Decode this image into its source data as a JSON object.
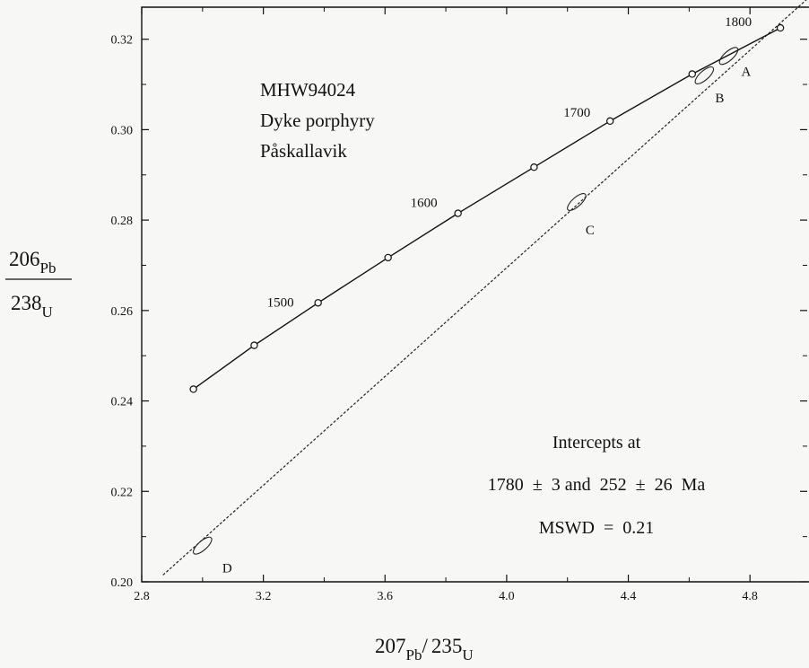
{
  "chart_data": {
    "type": "scatter",
    "title": "",
    "xlabel": {
      "mass1": "207",
      "elem1": "Pb",
      "slash": "/",
      "mass2": "235",
      "elem2": "U"
    },
    "ylabel": {
      "num_mass": "206",
      "num_elem": "Pb",
      "den_mass": "238",
      "den_elem": "U"
    },
    "xlim": [
      2.8,
      5.0
    ],
    "ylim": [
      0.2,
      0.325
    ],
    "x_ticks": [
      "2.8",
      "3.2",
      "3.6",
      "4.0",
      "4.4",
      "4.8"
    ],
    "y_ticks": [
      "0.20",
      "0.22",
      "0.24",
      "0.26",
      "0.28",
      "0.30",
      "0.32"
    ],
    "annotation_lines": [
      "MHW94024",
      "Dyke porphyry",
      "Påskallavik"
    ],
    "results_lines": [
      "Intercepts at",
      "1780  ±  3 and  252  ±  26  Ma",
      "MSWD  =  0.21"
    ],
    "concordia": {
      "name": "concordia",
      "points": [
        {
          "age": 1400,
          "x": 2.97,
          "y": 0.2426
        },
        {
          "age": 1450,
          "x": 3.17,
          "y": 0.2523
        },
        {
          "age": 1500,
          "x": 3.38,
          "y": 0.2617,
          "label": "1500"
        },
        {
          "age": 1550,
          "x": 3.61,
          "y": 0.2717
        },
        {
          "age": 1600,
          "x": 3.84,
          "y": 0.2815,
          "label": "1600"
        },
        {
          "age": 1650,
          "x": 4.09,
          "y": 0.2917
        },
        {
          "age": 1700,
          "x": 4.34,
          "y": 0.3019,
          "label": "1700"
        },
        {
          "age": 1750,
          "x": 4.61,
          "y": 0.3123
        },
        {
          "age": 1800,
          "x": 4.9,
          "y": 0.3225,
          "label": "1800"
        }
      ]
    },
    "discordia": {
      "name": "discordia",
      "from": {
        "x": 2.87,
        "y": 0.2015
      },
      "to": {
        "x": 4.99,
        "y": 0.329
      }
    },
    "analyses": [
      {
        "label": "A",
        "x": 4.73,
        "y": 0.3163
      },
      {
        "label": "B",
        "x": 4.65,
        "y": 0.312
      },
      {
        "label": "C",
        "x": 4.23,
        "y": 0.284
      },
      {
        "label": "D",
        "x": 3.0,
        "y": 0.208
      }
    ],
    "grid": false,
    "legend": "none"
  }
}
